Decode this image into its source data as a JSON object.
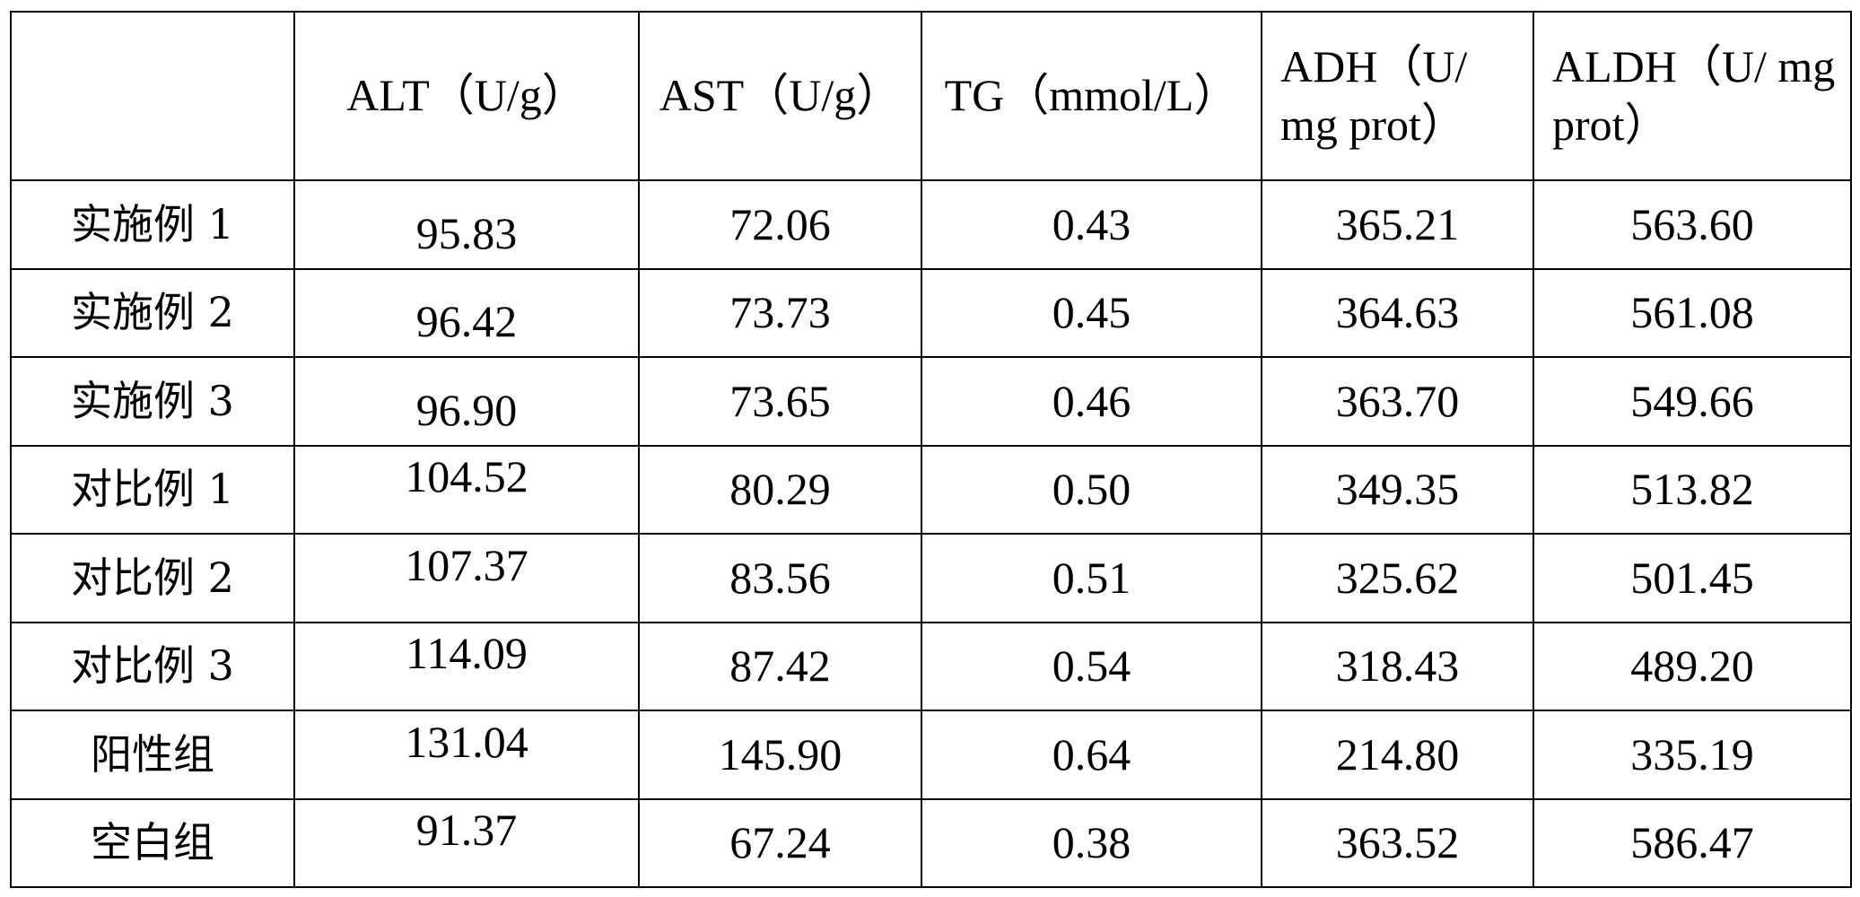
{
  "table": {
    "corner": "",
    "headers": [
      "ALT（U/g）",
      "AST（U/g）",
      "TG（mmol/L）",
      "ADH（U/ mg prot）",
      "ALDH（U/ mg prot）"
    ],
    "rows": [
      {
        "label": "实施例 1",
        "values": [
          "95.83",
          "72.06",
          "0.43",
          "365.21",
          "563.60"
        ]
      },
      {
        "label": "实施例 2",
        "values": [
          "96.42",
          "73.73",
          "0.45",
          "364.63",
          "561.08"
        ]
      },
      {
        "label": "实施例 3",
        "values": [
          "96.90",
          "73.65",
          "0.46",
          "363.70",
          "549.66"
        ]
      },
      {
        "label": "对比例 1",
        "values": [
          "104.52",
          "80.29",
          "0.50",
          "349.35",
          "513.82"
        ]
      },
      {
        "label": "对比例 2",
        "values": [
          "107.37",
          "83.56",
          "0.51",
          "325.62",
          "501.45"
        ]
      },
      {
        "label": "对比例 3",
        "values": [
          "114.09",
          "87.42",
          "0.54",
          "318.43",
          "489.20"
        ]
      },
      {
        "label": "阳性组",
        "values": [
          "131.04",
          "145.90",
          "0.64",
          "214.80",
          "335.19"
        ]
      },
      {
        "label": "空白组",
        "values": [
          "91.37",
          "67.24",
          "0.38",
          "363.52",
          "586.47"
        ]
      }
    ]
  }
}
